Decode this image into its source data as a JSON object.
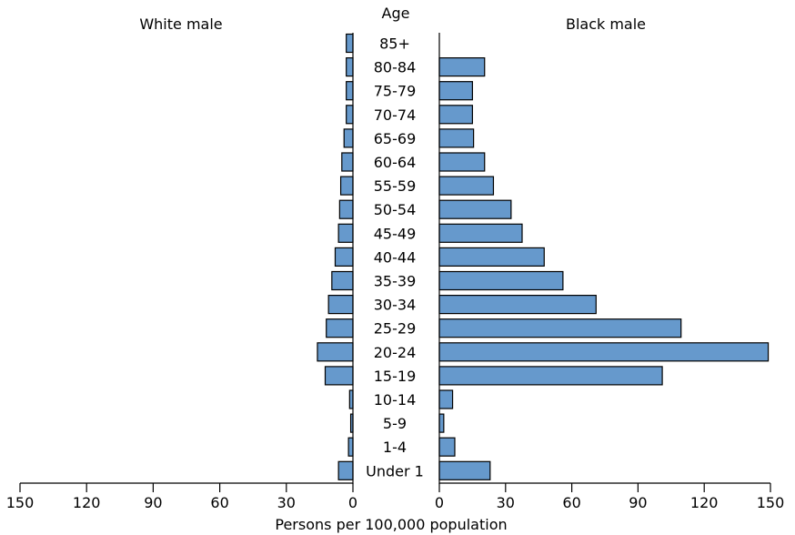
{
  "chart_data": {
    "type": "bar",
    "orientation": "horizontal",
    "layout": "population-pyramid",
    "center_title": "Age",
    "xlabel": "Persons per 100,000 population",
    "categories": [
      "85+",
      "80-84",
      "75-79",
      "70-74",
      "65-69",
      "60-64",
      "55-59",
      "50-54",
      "45-49",
      "40-44",
      "35-39",
      "30-34",
      "25-29",
      "20-24",
      "15-19",
      "10-14",
      "5-9",
      "1-4",
      "Under 1"
    ],
    "series": [
      {
        "name": "White male",
        "side": "left",
        "values": [
          3,
          3,
          3,
          3,
          4,
          5,
          5.5,
          6,
          6.5,
          8,
          9.5,
          11,
          12,
          16,
          12.5,
          1.5,
          1,
          2,
          6.5
        ]
      },
      {
        "name": "Black male",
        "side": "right",
        "values": [
          0,
          20.5,
          15,
          15,
          15.5,
          20.5,
          24.5,
          32.5,
          37.5,
          47.5,
          56,
          71,
          109.5,
          149,
          101,
          6,
          2,
          7,
          23
        ]
      }
    ],
    "left_axis": {
      "ticks": [
        150,
        120,
        90,
        60,
        30,
        0
      ],
      "range": [
        0,
        150
      ]
    },
    "right_axis": {
      "ticks": [
        0,
        30,
        60,
        90,
        120,
        150
      ],
      "range": [
        0,
        150
      ]
    },
    "bar_color": "#6699cc",
    "bar_stroke": "#000000",
    "grid": false
  }
}
